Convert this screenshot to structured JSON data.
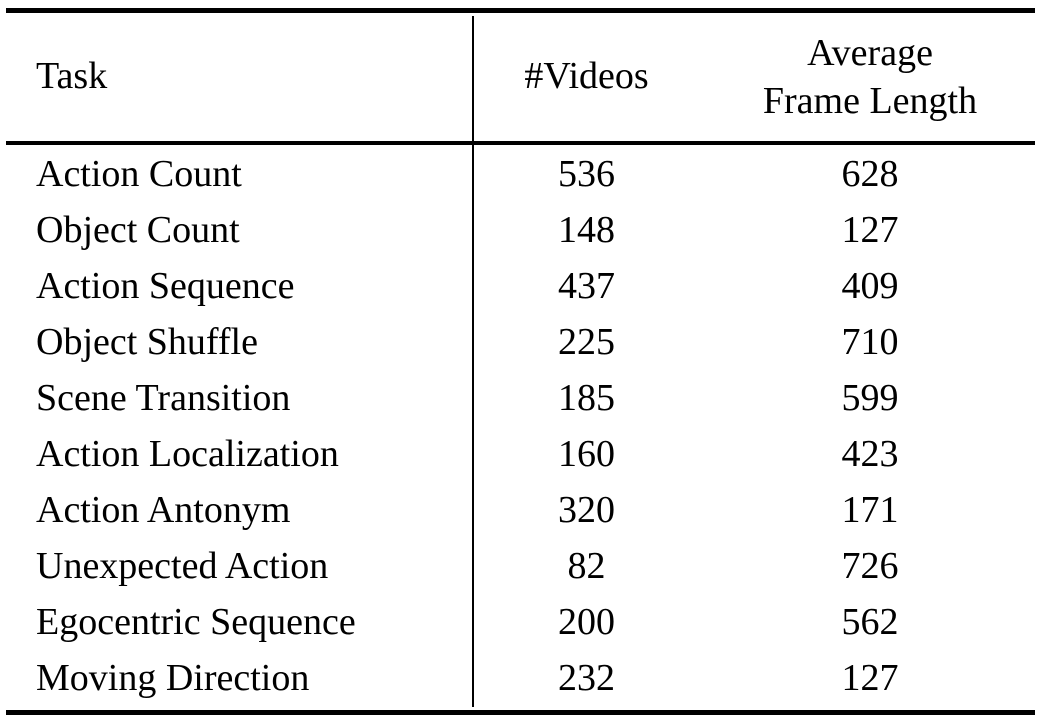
{
  "table": {
    "headers": {
      "task": "Task",
      "videos": "#Videos",
      "avg_line1": "Average",
      "avg_line2": "Frame Length"
    },
    "rows": [
      {
        "task": "Action Count",
        "videos": "536",
        "avg": "628"
      },
      {
        "task": "Object Count",
        "videos": "148",
        "avg": "127"
      },
      {
        "task": "Action Sequence",
        "videos": "437",
        "avg": "409"
      },
      {
        "task": "Object Shuffle",
        "videos": "225",
        "avg": "710"
      },
      {
        "task": "Scene Transition",
        "videos": "185",
        "avg": "599"
      },
      {
        "task": "Action Localization",
        "videos": "160",
        "avg": "423"
      },
      {
        "task": "Action Antonym",
        "videos": "320",
        "avg": "171"
      },
      {
        "task": "Unexpected Action",
        "videos": "82",
        "avg": "726"
      },
      {
        "task": "Egocentric Sequence",
        "videos": "200",
        "avg": "562"
      },
      {
        "task": "Moving Direction",
        "videos": "232",
        "avg": "127"
      }
    ]
  },
  "colors": {
    "text": "#000000",
    "rule": "#000000",
    "background": "#ffffff"
  },
  "chart_data": {
    "type": "table",
    "columns": [
      "Task",
      "#Videos",
      "Average Frame Length"
    ],
    "rows": [
      [
        "Action Count",
        536,
        628
      ],
      [
        "Object Count",
        148,
        127
      ],
      [
        "Action Sequence",
        437,
        409
      ],
      [
        "Object Shuffle",
        225,
        710
      ],
      [
        "Scene Transition",
        185,
        599
      ],
      [
        "Action Localization",
        160,
        423
      ],
      [
        "Action Antonym",
        320,
        171
      ],
      [
        "Unexpected Action",
        82,
        726
      ],
      [
        "Egocentric Sequence",
        200,
        562
      ],
      [
        "Moving Direction",
        232,
        127
      ]
    ]
  }
}
